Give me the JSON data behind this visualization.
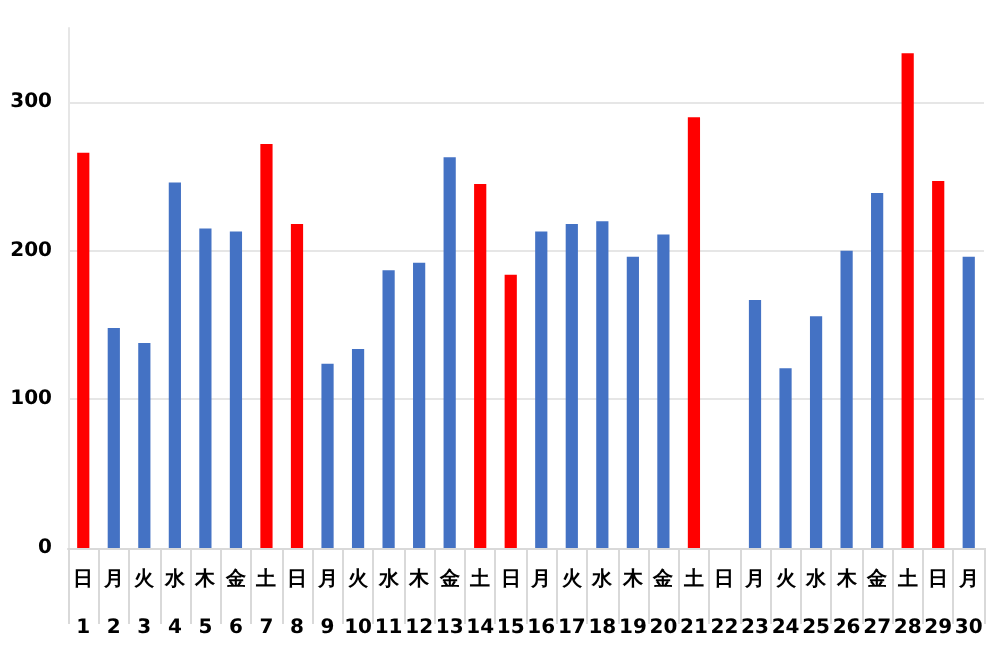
{
  "chart_data": {
    "type": "bar",
    "categories": [
      "日\n1",
      "月\n2",
      "火\n3",
      "水\n4",
      "木\n5",
      "金\n6",
      "土\n7",
      "日\n8",
      "月\n9",
      "火\n10",
      "水\n11",
      "木\n12",
      "金\n13",
      "土\n14",
      "日\n15",
      "月\n16",
      "火\n17",
      "水\n18",
      "木\n19",
      "金\n20",
      "土\n21",
      "日\n22",
      "月\n23",
      "火\n24",
      "水\n25",
      "木\n26",
      "金\n27",
      "土\n28",
      "日\n29",
      "月\n30"
    ],
    "values": [
      266,
      148,
      138,
      246,
      215,
      213,
      272,
      218,
      124,
      134,
      187,
      192,
      263,
      245,
      184,
      213,
      218,
      220,
      196,
      211,
      290,
      null,
      167,
      121,
      156,
      200,
      239,
      333,
      247,
      196
    ],
    "colors": [
      "#ff0000",
      "#4472c4",
      "#4472c4",
      "#4472c4",
      "#4472c4",
      "#4472c4",
      "#ff0000",
      "#ff0000",
      "#4472c4",
      "#4472c4",
      "#4472c4",
      "#4472c4",
      "#4472c4",
      "#ff0000",
      "#ff0000",
      "#4472c4",
      "#4472c4",
      "#4472c4",
      "#4472c4",
      "#4472c4",
      "#ff0000",
      "#ff0000",
      "#4472c4",
      "#4472c4",
      "#4472c4",
      "#4472c4",
      "#4472c4",
      "#ff0000",
      "#ff0000",
      "#4472c4"
    ],
    "ylim": [
      0,
      350
    ],
    "yticks": [
      0,
      100,
      200,
      300
    ],
    "grid": "y"
  }
}
